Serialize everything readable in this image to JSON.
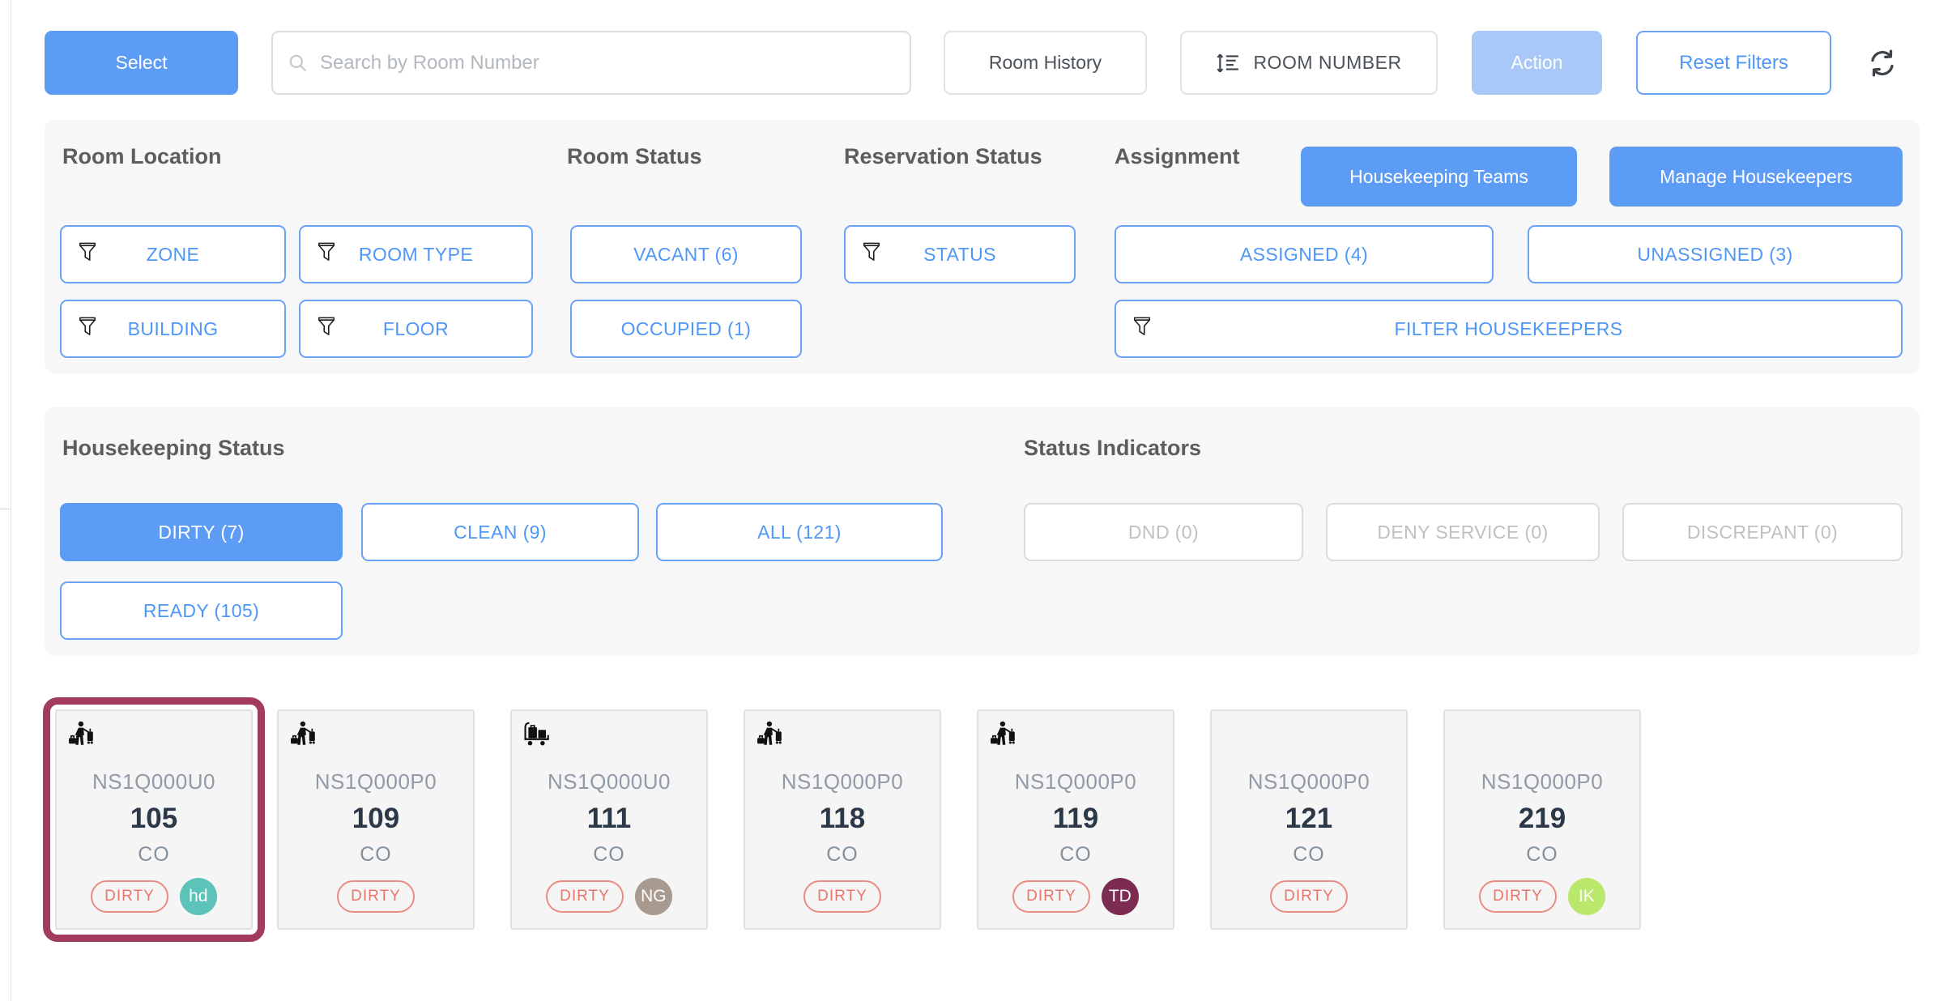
{
  "topbar": {
    "select_label": "Select",
    "search_placeholder": "Search by Room Number",
    "room_history_label": "Room History",
    "sort_label": "ROOM NUMBER",
    "action_label": "Action",
    "reset_filters_label": "Reset Filters"
  },
  "filters": {
    "room_location": {
      "title": "Room Location",
      "zone_label": "ZONE",
      "room_type_label": "ROOM TYPE",
      "building_label": "BUILDING",
      "floor_label": "FLOOR"
    },
    "room_status": {
      "title": "Room Status",
      "vacant_label": "VACANT (6)",
      "occupied_label": "OCCUPIED (1)"
    },
    "reservation_status": {
      "title": "Reservation Status",
      "status_label": "STATUS"
    },
    "assignment": {
      "title": "Assignment",
      "assigned_label": "ASSIGNED (4)",
      "unassigned_label": "UNASSIGNED (3)",
      "filter_housekeepers_label": "FILTER HOUSEKEEPERS"
    },
    "housekeeping_teams_label": "Housekeeping Teams",
    "manage_housekeepers_label": "Manage Housekeepers"
  },
  "housekeeping_status": {
    "title": "Housekeeping Status",
    "dirty_label": "DIRTY (7)",
    "clean_label": "CLEAN (9)",
    "all_label": "ALL (121)",
    "ready_label": "READY (105)"
  },
  "status_indicators": {
    "title": "Status Indicators",
    "dnd_label": "DND (0)",
    "deny_service_label": "DENY SERVICE (0)",
    "discrepant_label": "DISCREPANT (0)"
  },
  "rooms": [
    {
      "type": "NS1Q000U0",
      "number": "105",
      "reservation": "CO",
      "status": "DIRTY",
      "icon": "guest-with-luggage-icon",
      "badge": {
        "label": "hd",
        "color": "#5bc3b8"
      },
      "selected": true
    },
    {
      "type": "NS1Q000P0",
      "number": "109",
      "reservation": "CO",
      "status": "DIRTY",
      "icon": "guest-with-luggage-icon",
      "badge": null,
      "selected": false
    },
    {
      "type": "NS1Q000U0",
      "number": "111",
      "reservation": "CO",
      "status": "DIRTY",
      "icon": "luggage-cart-icon",
      "badge": {
        "label": "NG",
        "color": "#a89a8e"
      },
      "selected": false
    },
    {
      "type": "NS1Q000P0",
      "number": "118",
      "reservation": "CO",
      "status": "DIRTY",
      "icon": "guest-with-luggage-icon",
      "badge": null,
      "selected": false
    },
    {
      "type": "NS1Q000P0",
      "number": "119",
      "reservation": "CO",
      "status": "DIRTY",
      "icon": "guest-with-luggage-icon",
      "badge": {
        "label": "TD",
        "color": "#7c2b51"
      },
      "selected": false
    },
    {
      "type": "NS1Q000P0",
      "number": "121",
      "reservation": "CO",
      "status": "DIRTY",
      "icon": null,
      "badge": null,
      "selected": false
    },
    {
      "type": "NS1Q000P0",
      "number": "219",
      "reservation": "CO",
      "status": "DIRTY",
      "icon": null,
      "badge": {
        "label": "IK",
        "color": "#b9e86a"
      },
      "selected": false
    }
  ],
  "colors": {
    "accent_blue": "#5d9cf5",
    "selected_card_border": "#a23b5e",
    "dirty_red": "#e8756b",
    "panel_gray": "#f7f7f7"
  }
}
